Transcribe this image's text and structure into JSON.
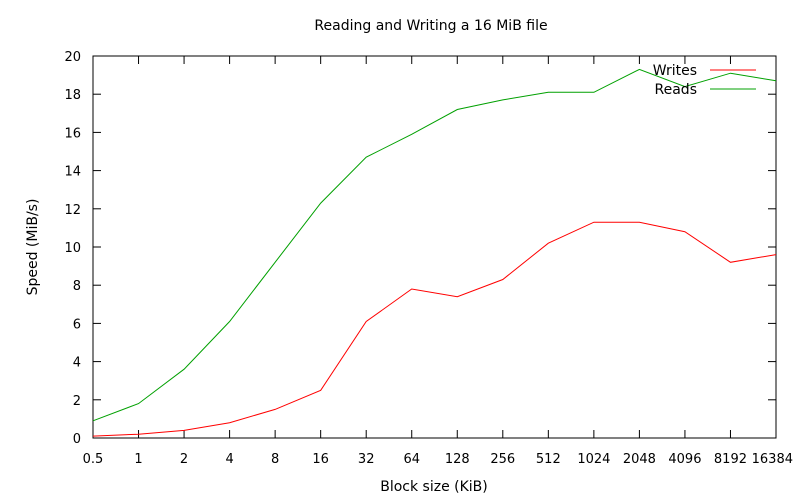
{
  "chart_data": {
    "type": "line",
    "title": "Reading and Writing a 16 MiB file",
    "xlabel": "Block size (KiB)",
    "ylabel": "Speed (MiB/s)",
    "categories": [
      "0.5",
      "1",
      "2",
      "4",
      "8",
      "16",
      "32",
      "64",
      "128",
      "256",
      "512",
      "1024",
      "2048",
      "4096",
      "8192",
      "16384"
    ],
    "ylim": [
      0,
      20
    ],
    "yticks": [
      0,
      2,
      4,
      6,
      8,
      10,
      12,
      14,
      16,
      18,
      20
    ],
    "grid": false,
    "legend_position": "top-right",
    "series": [
      {
        "name": "Writes",
        "color": "#ff0000",
        "values": [
          0.1,
          0.2,
          0.4,
          0.8,
          1.5,
          2.5,
          6.1,
          7.8,
          7.4,
          8.3,
          10.2,
          11.3,
          11.3,
          10.8,
          9.2,
          9.6
        ]
      },
      {
        "name": "Reads",
        "color": "#00a000",
        "values": [
          0.9,
          1.8,
          3.6,
          6.1,
          9.2,
          12.3,
          14.7,
          15.9,
          17.2,
          17.7,
          18.1,
          18.1,
          19.3,
          18.4,
          19.1,
          18.7
        ]
      }
    ]
  }
}
